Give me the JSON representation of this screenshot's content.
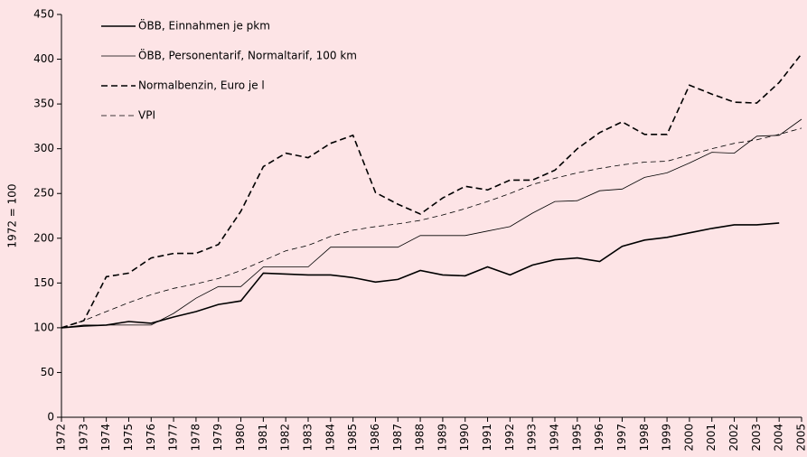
{
  "chart_data": {
    "type": "line",
    "y_label": "1972 = 100",
    "categories": [
      "1972",
      "1973",
      "1974",
      "1975",
      "1976",
      "1977",
      "1978",
      "1979",
      "1980",
      "1981",
      "1982",
      "1983",
      "1984",
      "1985",
      "1986",
      "1987",
      "1988",
      "1989",
      "1990",
      "1991",
      "1992",
      "1993",
      "1994",
      "1995",
      "1996",
      "1997",
      "1998",
      "1999",
      "2000",
      "2001",
      "2002",
      "2003",
      "2004",
      "2005"
    ],
    "series": [
      {
        "name": "ÖBB, Einnahmen je pkm",
        "color": "#000000",
        "dashed": false,
        "linewidth": 1.6,
        "values": [
          100,
          102,
          103,
          107,
          105,
          112,
          118,
          126,
          130,
          161,
          160,
          159,
          159,
          156,
          151,
          154,
          164,
          159,
          158,
          168,
          159,
          170,
          176,
          178,
          174,
          191,
          198,
          201,
          206,
          211,
          215,
          215,
          217,
          null
        ]
      },
      {
        "name": "ÖBB, Personentarif, Normaltarif, 100 km",
        "color": "#000000",
        "dashed": false,
        "linewidth": 0.8,
        "values": [
          100,
          103,
          103,
          103,
          103,
          116,
          133,
          146,
          146,
          168,
          168,
          168,
          190,
          190,
          190,
          190,
          203,
          203,
          203,
          208,
          213,
          228,
          241,
          242,
          253,
          255,
          268,
          273,
          284,
          296,
          295,
          314,
          315,
          333
        ]
      },
      {
        "name": "Normalbenzin, Euro je l",
        "color": "#000000",
        "dashed": true,
        "linewidth": 1.6,
        "values": [
          100,
          108,
          157,
          161,
          178,
          183,
          183,
          193,
          230,
          280,
          295,
          290,
          306,
          315,
          251,
          238,
          227,
          245,
          258,
          254,
          265,
          265,
          276,
          300,
          318,
          330,
          316,
          316,
          371,
          361,
          352,
          351,
          374,
          406
        ]
      },
      {
        "name": "VPI",
        "color": "#000000",
        "dashed": true,
        "linewidth": 0.8,
        "values": [
          100,
          108,
          118,
          128,
          137,
          144,
          149,
          155,
          164,
          175,
          186,
          192,
          202,
          209,
          213,
          216,
          220,
          226,
          233,
          241,
          250,
          260,
          267,
          273,
          278,
          282,
          285,
          286,
          293,
          300,
          306,
          310,
          316,
          323
        ]
      }
    ],
    "ylim": [
      0,
      450
    ],
    "yticks": [
      0,
      50,
      100,
      150,
      200,
      250,
      300,
      350,
      400,
      450
    ],
    "grid": false
  }
}
